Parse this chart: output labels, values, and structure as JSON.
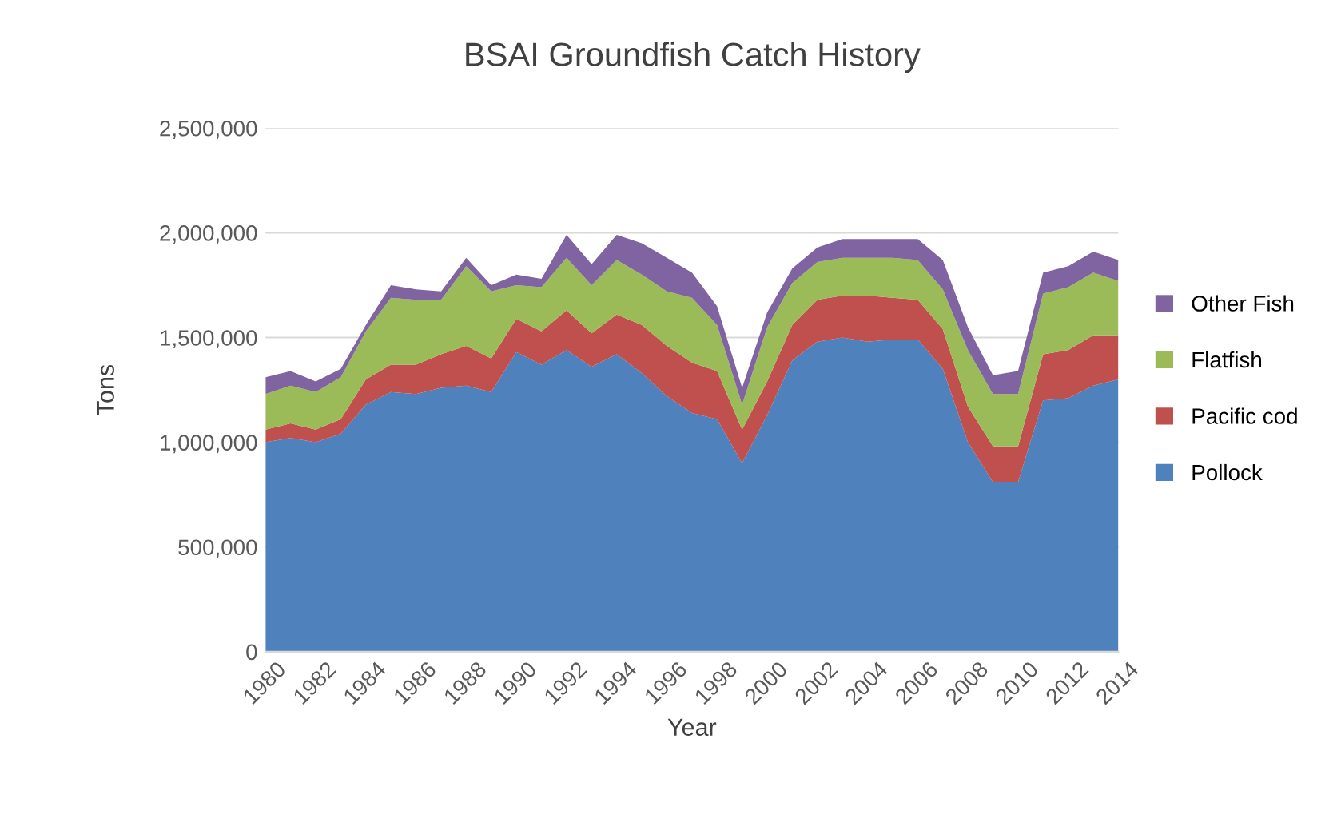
{
  "chart_data": {
    "type": "area",
    "stacked": true,
    "title": "BSAI Groundfish Catch History",
    "xlabel": "Year",
    "ylabel": "Tons",
    "categories": [
      "1980",
      null,
      "1982",
      null,
      "1984",
      null,
      "1986",
      null,
      "1988",
      null,
      "1990",
      null,
      "1992",
      null,
      "1994",
      null,
      "1996",
      null,
      "1998",
      null,
      "2000",
      null,
      "2002",
      null,
      "2004",
      null,
      "2006",
      null,
      "2008",
      null,
      "2010",
      null,
      "2012",
      null,
      "2014"
    ],
    "series": [
      {
        "name": "Pollock",
        "color": "#4f81bd",
        "values": [
          1000000,
          1020000,
          1000000,
          1040000,
          1180000,
          1240000,
          1230000,
          1260000,
          1270000,
          1240000,
          1430000,
          1370000,
          1440000,
          1360000,
          1420000,
          1330000,
          1220000,
          1140000,
          1110000,
          900000,
          1130000,
          1390000,
          1480000,
          1500000,
          1480000,
          1490000,
          1490000,
          1350000,
          1000000,
          810000,
          810000,
          1200000,
          1210000,
          1270000,
          1300000
        ]
      },
      {
        "name": "Pacific cod",
        "color": "#c0504d",
        "values": [
          60000,
          70000,
          60000,
          70000,
          120000,
          130000,
          140000,
          160000,
          190000,
          160000,
          160000,
          160000,
          190000,
          160000,
          190000,
          230000,
          240000,
          240000,
          230000,
          160000,
          160000,
          170000,
          200000,
          200000,
          220000,
          200000,
          190000,
          190000,
          170000,
          170000,
          170000,
          220000,
          230000,
          240000,
          210000
        ]
      },
      {
        "name": "Flatfish",
        "color": "#9bbb59",
        "values": [
          170000,
          180000,
          180000,
          200000,
          230000,
          320000,
          310000,
          260000,
          380000,
          320000,
          160000,
          210000,
          250000,
          230000,
          260000,
          240000,
          260000,
          310000,
          220000,
          120000,
          260000,
          200000,
          180000,
          180000,
          180000,
          190000,
          190000,
          190000,
          270000,
          250000,
          250000,
          290000,
          300000,
          300000,
          260000
        ]
      },
      {
        "name": "Other Fish",
        "color": "#8064a2",
        "values": [
          80000,
          70000,
          50000,
          40000,
          30000,
          60000,
          50000,
          40000,
          40000,
          30000,
          50000,
          40000,
          110000,
          100000,
          120000,
          150000,
          160000,
          120000,
          90000,
          80000,
          70000,
          70000,
          70000,
          90000,
          90000,
          90000,
          100000,
          140000,
          110000,
          90000,
          110000,
          100000,
          100000,
          100000,
          100000
        ]
      }
    ],
    "ylim": [
      0,
      2500000
    ],
    "yticks": [
      {
        "value": 0,
        "label": "0"
      },
      {
        "value": 500000,
        "label": "500,000"
      },
      {
        "value": 1000000,
        "label": "1,000,000"
      },
      {
        "value": 1500000,
        "label": "1,500,000"
      },
      {
        "value": 2000000,
        "label": "2,000,000"
      },
      {
        "value": 2500000,
        "label": "2,500,000"
      }
    ],
    "grid": "y",
    "legend": "right"
  }
}
